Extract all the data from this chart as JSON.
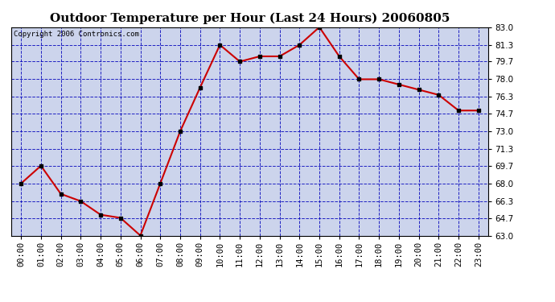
{
  "title": "Outdoor Temperature per Hour (Last 24 Hours) 20060805",
  "copyright": "Copyright 2006 Contronics.com",
  "hours": [
    "00:00",
    "01:00",
    "02:00",
    "03:00",
    "04:00",
    "05:00",
    "06:00",
    "07:00",
    "08:00",
    "09:00",
    "10:00",
    "11:00",
    "12:00",
    "13:00",
    "14:00",
    "15:00",
    "16:00",
    "17:00",
    "18:00",
    "19:00",
    "20:00",
    "21:00",
    "22:00",
    "23:00"
  ],
  "temps": [
    68.0,
    69.7,
    67.0,
    66.3,
    65.0,
    64.7,
    63.0,
    68.0,
    73.0,
    77.2,
    81.3,
    79.7,
    80.2,
    80.2,
    81.3,
    83.0,
    80.2,
    78.0,
    78.0,
    77.5,
    77.0,
    76.5,
    75.0,
    75.0
  ],
  "ylim": [
    63.0,
    83.0
  ],
  "yticks": [
    63.0,
    64.7,
    66.3,
    68.0,
    69.7,
    71.3,
    73.0,
    74.7,
    76.3,
    78.0,
    79.7,
    81.3,
    83.0
  ],
  "line_color": "#cc0000",
  "marker_color": "#000000",
  "grid_color": "#0000bb",
  "plot_bg_color": "#ccd4ec",
  "fig_bg_color": "#ffffff",
  "title_fontsize": 11,
  "copyright_fontsize": 6.5,
  "tick_fontsize": 7.5
}
